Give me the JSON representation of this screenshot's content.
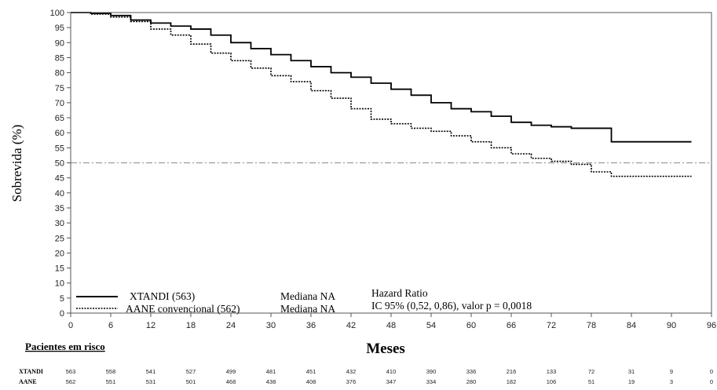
{
  "chart_data": {
    "type": "line",
    "xlabel": "Meses",
    "ylabel": "Sobrevida (%)",
    "xlim": [
      0,
      96
    ],
    "ylim": [
      0,
      100
    ],
    "xticks": [
      0,
      6,
      12,
      18,
      24,
      30,
      36,
      42,
      48,
      54,
      60,
      66,
      72,
      78,
      84,
      90,
      96
    ],
    "yticks": [
      0,
      5,
      10,
      15,
      20,
      25,
      30,
      35,
      40,
      45,
      50,
      55,
      60,
      65,
      70,
      75,
      80,
      85,
      90,
      95,
      100
    ],
    "reference_line_y": 50,
    "series": [
      {
        "name": "XTANDI (563)",
        "style": "solid",
        "color": "#000000",
        "x": [
          0,
          3,
          6,
          9,
          12,
          15,
          18,
          21,
          24,
          27,
          30,
          33,
          36,
          39,
          42,
          45,
          48,
          51,
          54,
          57,
          60,
          63,
          66,
          69,
          72,
          75,
          78,
          80.5,
          81,
          84,
          87,
          90,
          93
        ],
        "y": [
          100,
          99.7,
          99,
          97.5,
          96.5,
          95.5,
          94.5,
          92.5,
          90,
          88,
          86,
          84,
          82,
          80,
          78.5,
          76.5,
          74.5,
          72.5,
          70,
          68,
          67,
          65.5,
          63.5,
          62.5,
          62,
          61.5,
          61.5,
          61.5,
          57,
          57,
          57,
          57,
          57
        ]
      },
      {
        "name": "AANE convencional (562)",
        "style": "dotted",
        "color": "#000000",
        "x": [
          0,
          3,
          6,
          9,
          12,
          15,
          18,
          21,
          24,
          27,
          30,
          33,
          36,
          39,
          42,
          45,
          48,
          51,
          54,
          57,
          60,
          63,
          66,
          69,
          72,
          75,
          78,
          81,
          84,
          87,
          90,
          93
        ],
        "y": [
          100,
          99.5,
          98.5,
          97,
          94.5,
          92.5,
          89.5,
          86.5,
          84,
          81.5,
          79,
          77,
          74,
          71.5,
          68,
          64.5,
          63,
          61.5,
          60.5,
          59,
          57,
          55,
          53,
          51.5,
          50.5,
          49.5,
          47,
          45.5,
          45.5,
          45.5,
          45.5,
          45.5
        ]
      }
    ],
    "annotations": {
      "median_label": "Mediana NA",
      "hazard_title": "Hazard Ratio",
      "hazard_ci": "IC 95% (0,52, 0,86), valor p = 0,0018"
    },
    "risk_table": {
      "title": "Pacientes em risco",
      "times": [
        0,
        6,
        12,
        18,
        24,
        30,
        36,
        42,
        48,
        54,
        60,
        66,
        72,
        78,
        84,
        90,
        96
      ],
      "rows": [
        {
          "name": "XTANDI",
          "values": [
            563,
            558,
            541,
            527,
            499,
            481,
            451,
            432,
            410,
            390,
            336,
            216,
            133,
            72,
            31,
            9,
            0
          ]
        },
        {
          "name": "AANE",
          "values": [
            562,
            551,
            531,
            501,
            468,
            438,
            408,
            376,
            347,
            334,
            280,
            182,
            106,
            51,
            19,
            3,
            0
          ]
        }
      ]
    }
  }
}
